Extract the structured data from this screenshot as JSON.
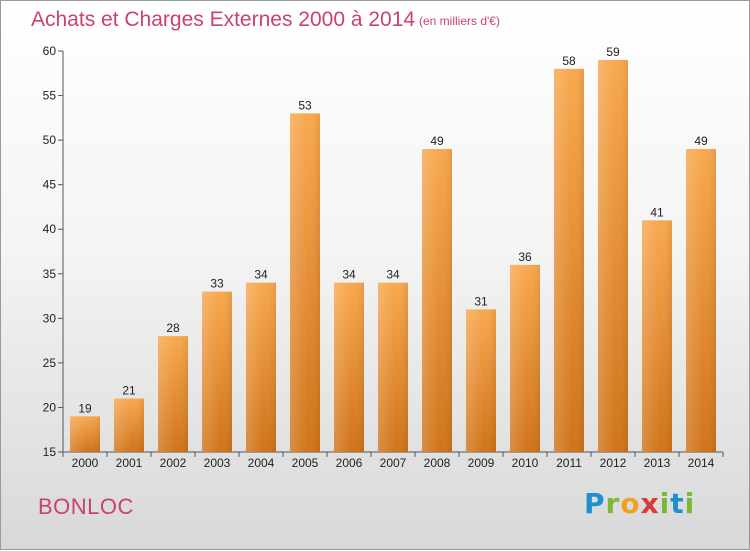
{
  "header": {
    "title": "Achats et Charges Externes 2000 à 2014",
    "subtitle": "(en milliers d'€)"
  },
  "footer": {
    "commune": "BONLOC",
    "brand": "Proxiti"
  },
  "colors": {
    "title": "#c8436e",
    "bar_light": "#f8a84e",
    "bar_dark": "#d0741a"
  },
  "chart_data": {
    "type": "bar",
    "title": "Achats et Charges Externes 2000 à 2014",
    "subtitle": "(en milliers d'€)",
    "categories": [
      "2000",
      "2001",
      "2002",
      "2003",
      "2004",
      "2005",
      "2006",
      "2007",
      "2008",
      "2009",
      "2010",
      "2011",
      "2012",
      "2013",
      "2014"
    ],
    "values": [
      19,
      21,
      28,
      33,
      34,
      53,
      34,
      34,
      49,
      31,
      36,
      58,
      59,
      41,
      49
    ],
    "xlabel": "",
    "ylabel": "",
    "ylim": [
      15,
      60
    ],
    "yticks": [
      15,
      20,
      25,
      30,
      35,
      40,
      45,
      50,
      55,
      60
    ],
    "grid": false,
    "data_labels": true
  }
}
